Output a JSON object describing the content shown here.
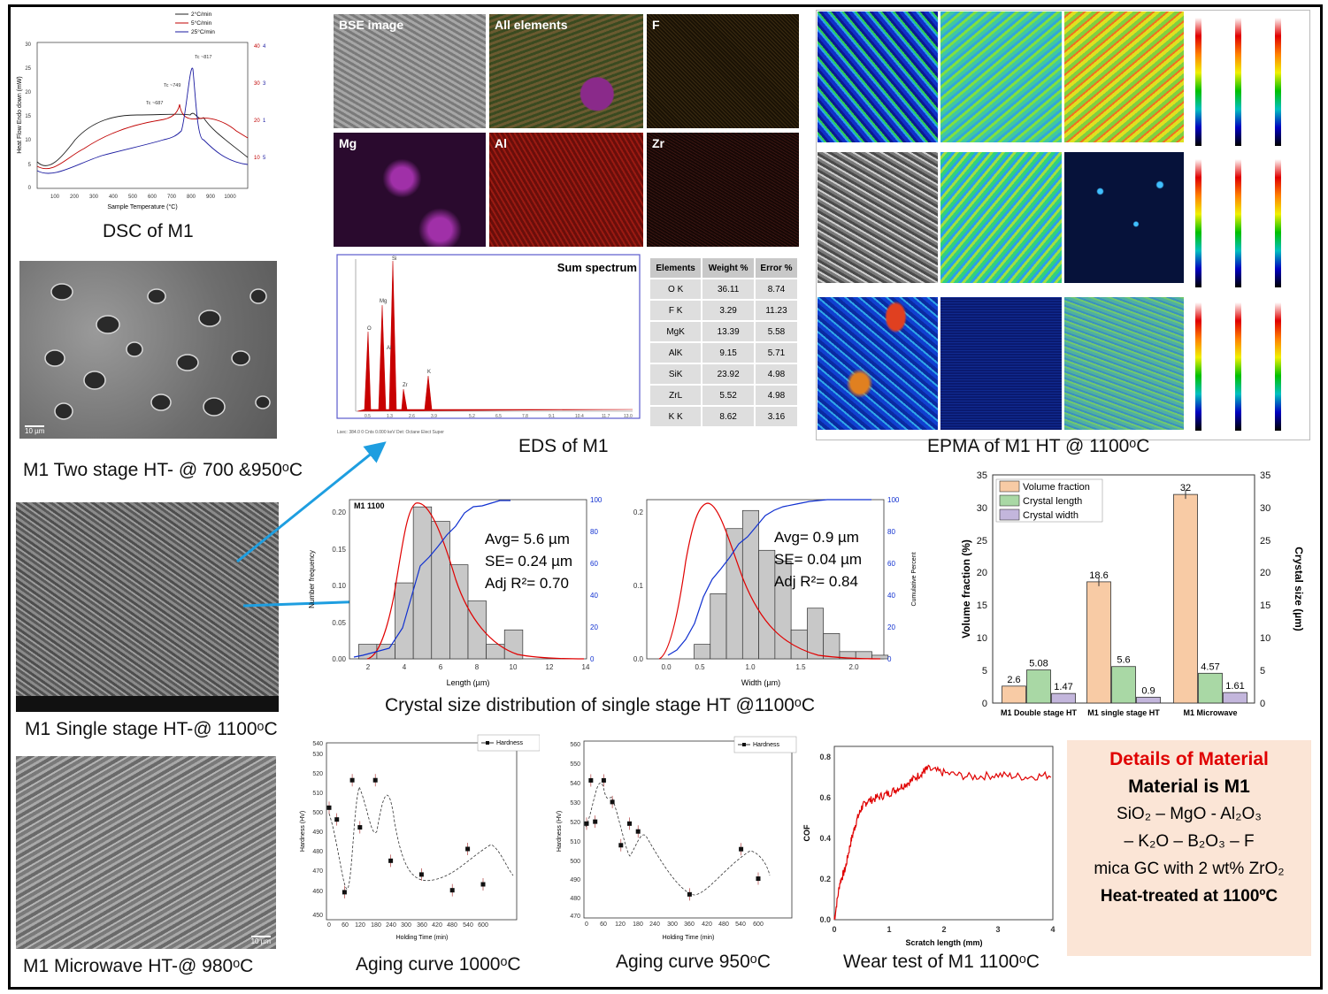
{
  "captions": {
    "dsc": "DSC of M1",
    "two_stage": "M1 Two stage HT- @ 700 &950ᵒC",
    "single_stage": "M1 Single stage HT-@ 1100ᵒC",
    "microwave": "M1 Microwave HT-@ 980ᵒC",
    "eds": "EDS of M1",
    "epma": "EPMA of M1 HT @ 1100ᵒC",
    "csd": "Crystal size distribution of single stage HT @1100ᵒC",
    "aging1000": "Aging curve 1000ᵒC",
    "aging950": "Aging curve 950ᵒC",
    "wear": "Wear test of M1 1100ᵒC"
  },
  "eds_maps": {
    "tiles": [
      {
        "label": "BSE image",
        "color": "#8a8a8a"
      },
      {
        "label": "All elements",
        "color": "#4a5a30"
      },
      {
        "label": "F",
        "color": "#1e1608"
      },
      {
        "label": "Mg",
        "color": "#2a0a2e"
      },
      {
        "label": "Al",
        "color": "#5a0c08"
      },
      {
        "label": "Zr",
        "color": "#1c0a08"
      }
    ],
    "spectrum_title": "Sum spectrum",
    "table": {
      "headers": [
        "Elements",
        "Weight %",
        "Error %"
      ],
      "rows": [
        [
          "O K",
          "36.11",
          "8.74"
        ],
        [
          "F K",
          "3.29",
          "11.23"
        ],
        [
          "MgK",
          "13.39",
          "5.58"
        ],
        [
          "AlK",
          "9.15",
          "5.71"
        ],
        [
          "SiK",
          "23.92",
          "4.98"
        ],
        [
          "ZrL",
          "5.52",
          "4.98"
        ],
        [
          "K K",
          "8.62",
          "3.16"
        ]
      ]
    }
  },
  "csd_stats": {
    "length": {
      "avg": "Avg= 5.6 µm",
      "se": "SE= 0.24 µm",
      "r2": "Adj R²= 0.70",
      "label": "M1 1100",
      "xlabel": "Length (µm)"
    },
    "width": {
      "avg": "Avg= 0.9 µm",
      "se": "SE= 0.04 µm",
      "r2": "Adj R²= 0.84",
      "xlabel": "Width (µm)"
    }
  },
  "details": {
    "heading": "Details of Material",
    "material": "Material is M1",
    "line1": "SiO₂ – MgO - Al₂O₃",
    "line2": "– K₂O – B₂O₃ – F",
    "line3": "mica GC with 2 wt% ZrO₂",
    "line4": "Heat-treated at 1100ºC",
    "heading_color": "#e00000",
    "box_color": "#fbe5d6"
  },
  "chart_data": [
    {
      "type": "line",
      "title": "",
      "xlabel": "Sample Temperature (°C)",
      "ylabel": "Heat Flow Endo down (mW)",
      "xlim": [
        0,
        1100
      ],
      "ylim": [
        -5,
        30
      ],
      "series": [
        {
          "name": "2°C/min",
          "color": "#222222"
        },
        {
          "name": "5°C/min",
          "color": "#c00000"
        },
        {
          "name": "25°C/min",
          "color": "#1a1aa0"
        }
      ],
      "annotations": [
        "Tc ~817",
        "Tc ~749",
        "Tc ~687"
      ]
    },
    {
      "type": "bar",
      "categories": [
        "M1 Double stage HT",
        "M1 single stage HT",
        "M1 Microwave"
      ],
      "ylabel": "Volume fraction (%)",
      "y2label": "Crystal size (µm)",
      "ylim": [
        0,
        35
      ],
      "series": [
        {
          "name": "Volume fraction",
          "values": [
            2.6,
            18.6,
            32
          ],
          "color": "#f8cba5"
        },
        {
          "name": "Crystal length",
          "values": [
            5.08,
            5.6,
            4.57
          ],
          "color": "#a9d8a5"
        },
        {
          "name": "Crystal width",
          "values": [
            1.47,
            0.9,
            1.61
          ],
          "color": "#c3b6dc"
        }
      ]
    },
    {
      "type": "line",
      "xlabel": "Holding Time (min)",
      "ylabel": "Hardness (HV)",
      "legend": "Hardness",
      "ylim": [
        450,
        540
      ],
      "x": [
        0,
        30,
        60,
        90,
        120,
        180,
        240,
        360,
        480,
        540,
        600
      ],
      "y": [
        507,
        501,
        464,
        521,
        497,
        521,
        480,
        473,
        465,
        486,
        468
      ]
    },
    {
      "type": "line",
      "xlabel": "Holding Time (min)",
      "ylabel": "Hardness (HV)",
      "legend": "Hardness",
      "ylim": [
        470,
        560
      ],
      "x": [
        0,
        15,
        30,
        60,
        90,
        120,
        150,
        180,
        360,
        540,
        600
      ],
      "y": [
        518,
        540,
        519,
        540,
        529,
        507,
        518,
        514,
        482,
        505,
        490
      ]
    },
    {
      "type": "line",
      "xlabel": "Scratch length (mm)",
      "ylabel": "COF",
      "xlim": [
        0,
        4
      ],
      "ylim": [
        0,
        0.85
      ],
      "x": [
        0,
        0.1,
        0.2,
        0.3,
        0.4,
        0.5,
        0.6,
        0.8,
        1.0,
        1.2,
        1.4,
        1.6,
        1.7,
        2.0,
        2.5,
        3.0,
        3.5,
        4.0
      ],
      "y": [
        0,
        0.18,
        0.25,
        0.38,
        0.48,
        0.55,
        0.58,
        0.6,
        0.62,
        0.65,
        0.68,
        0.72,
        0.74,
        0.72,
        0.7,
        0.71,
        0.7,
        0.71
      ]
    },
    {
      "type": "bar",
      "title": "M1 1100",
      "xlabel": "Length (µm)",
      "ylabel": "Number frequency",
      "xlim": [
        1,
        14
      ],
      "ylim": [
        0,
        0.22
      ],
      "bins": [
        2,
        3,
        4,
        5,
        6,
        7,
        8,
        9,
        10
      ],
      "values": [
        0.02,
        0.02,
        0.105,
        0.21,
        0.19,
        0.13,
        0.08,
        0.02,
        0.04
      ]
    },
    {
      "type": "bar",
      "xlabel": "Width (µm)",
      "ylabel": "Cumulative Percent",
      "xlim": [
        0,
        2.2
      ],
      "ylim": [
        0,
        0.22
      ],
      "bins": [
        0.35,
        0.5,
        0.65,
        0.8,
        0.95,
        1.1,
        1.25,
        1.4,
        1.55,
        1.7,
        1.85,
        2.0
      ],
      "values": [
        0.02,
        0.09,
        0.18,
        0.205,
        0.15,
        0.135,
        0.04,
        0.07,
        0.035,
        0.01,
        0.01,
        0.005
      ]
    }
  ]
}
